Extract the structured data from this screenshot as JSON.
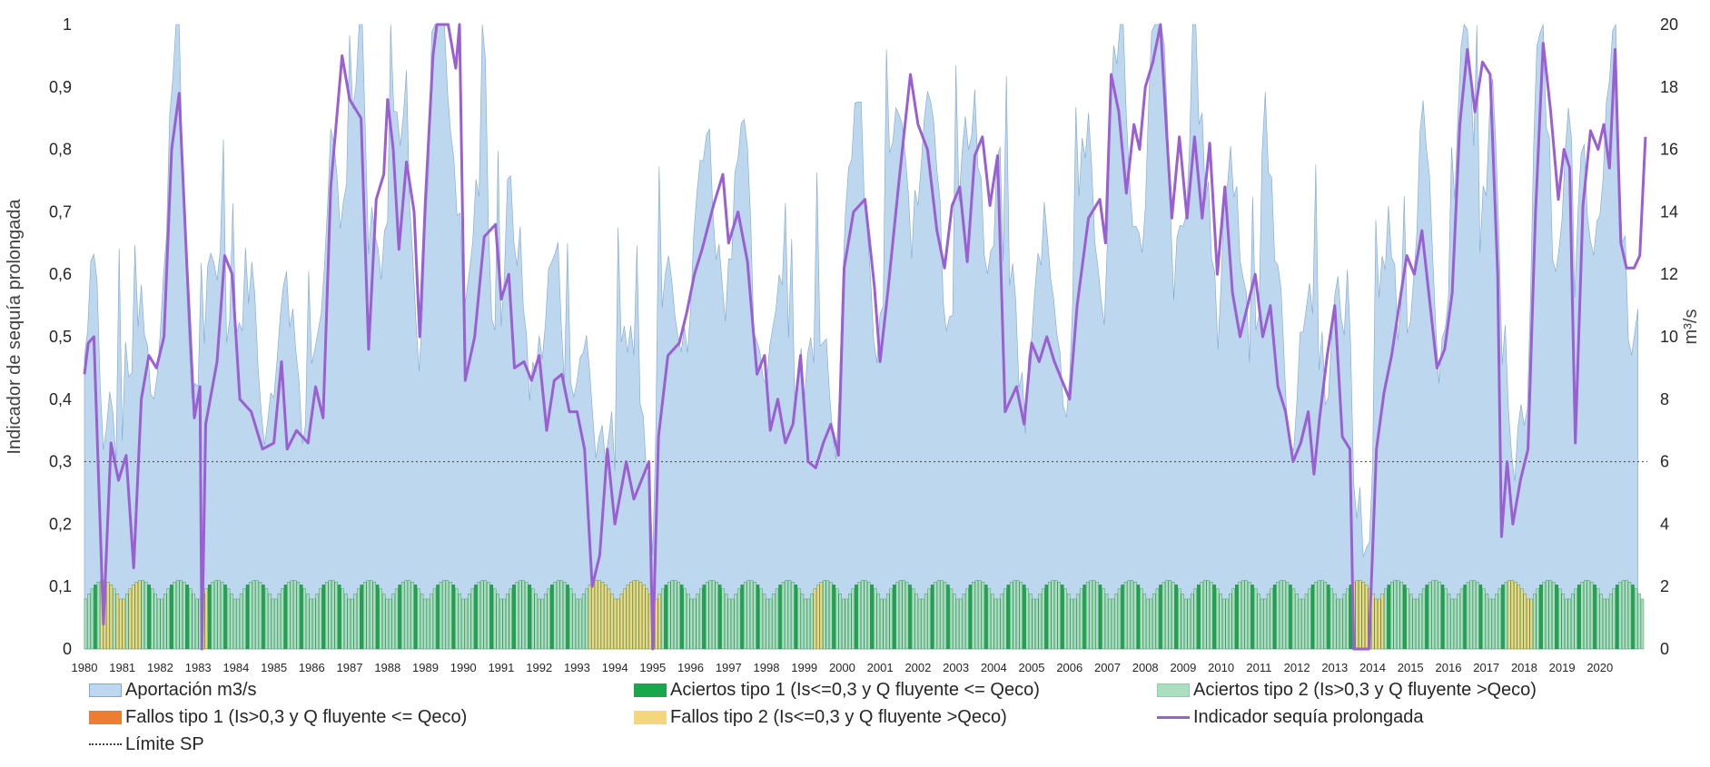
{
  "chart_data": {
    "type": "area+bar+line",
    "y_left_label": "Indicador de sequía prolongada",
    "y_right_label": "m³/s",
    "y_left_ticks": [
      "0",
      "0,1",
      "0,2",
      "0,3",
      "0,4",
      "0,5",
      "0,6",
      "0,7",
      "0,8",
      "0,9",
      "1"
    ],
    "y_right_ticks": [
      "0",
      "2",
      "4",
      "6",
      "8",
      "10",
      "12",
      "14",
      "16",
      "18",
      "20"
    ],
    "ylim_left": [
      0,
      1
    ],
    "ylim_right": [
      0,
      20
    ],
    "x_years": [
      "1980",
      "1981",
      "1982",
      "1983",
      "1984",
      "1985",
      "1986",
      "1987",
      "1988",
      "1989",
      "1990",
      "1991",
      "1992",
      "1993",
      "1994",
      "1995",
      "1996",
      "1997",
      "1998",
      "1999",
      "2000",
      "2001",
      "2002",
      "2003",
      "2004",
      "2005",
      "2006",
      "2007",
      "2008",
      "2009",
      "2010",
      "2011",
      "2012",
      "2013",
      "2014",
      "2015",
      "2016",
      "2017",
      "2018",
      "2019",
      "2020"
    ],
    "threshold": 0.3,
    "colors": {
      "aportacion": "#bdd7ee",
      "aportacion_edge": "#7fa7cf",
      "aciertos1": "#1aa64a",
      "aciertos2": "#a9dfbf",
      "fallos1": "#ed7d31",
      "fallos2": "#f3d77a",
      "indicador": "#9a5fd2",
      "limite": "#404040"
    },
    "indicador_anchors": [
      [
        1980.0,
        0.44
      ],
      [
        1980.1,
        0.49
      ],
      [
        1980.25,
        0.5
      ],
      [
        1980.5,
        0.04
      ],
      [
        1980.7,
        0.33
      ],
      [
        1980.9,
        0.27
      ],
      [
        1981.1,
        0.31
      ],
      [
        1981.3,
        0.13
      ],
      [
        1981.5,
        0.4
      ],
      [
        1981.7,
        0.47
      ],
      [
        1981.9,
        0.45
      ],
      [
        1982.1,
        0.5
      ],
      [
        1982.3,
        0.8
      ],
      [
        1982.5,
        0.89
      ],
      [
        1982.7,
        0.62
      ],
      [
        1982.9,
        0.37
      ],
      [
        1983.05,
        0.42
      ],
      [
        1983.1,
        0.0
      ],
      [
        1983.2,
        0.36
      ],
      [
        1983.5,
        0.46
      ],
      [
        1983.7,
        0.63
      ],
      [
        1983.9,
        0.6
      ],
      [
        1984.1,
        0.4
      ],
      [
        1984.4,
        0.38
      ],
      [
        1984.7,
        0.32
      ],
      [
        1985.0,
        0.33
      ],
      [
        1985.2,
        0.46
      ],
      [
        1985.35,
        0.32
      ],
      [
        1985.6,
        0.35
      ],
      [
        1985.9,
        0.33
      ],
      [
        1986.1,
        0.42
      ],
      [
        1986.3,
        0.37
      ],
      [
        1986.5,
        0.74
      ],
      [
        1986.8,
        0.95
      ],
      [
        1987.0,
        0.88
      ],
      [
        1987.3,
        0.85
      ],
      [
        1987.5,
        0.48
      ],
      [
        1987.7,
        0.72
      ],
      [
        1987.9,
        0.76
      ],
      [
        1988.0,
        0.88
      ],
      [
        1988.15,
        0.8
      ],
      [
        1988.3,
        0.64
      ],
      [
        1988.5,
        0.78
      ],
      [
        1988.7,
        0.7
      ],
      [
        1988.85,
        0.5
      ],
      [
        1989.0,
        0.72
      ],
      [
        1989.2,
        0.95
      ],
      [
        1989.3,
        1.0
      ],
      [
        1989.6,
        1.0
      ],
      [
        1989.8,
        0.93
      ],
      [
        1989.9,
        1.0
      ],
      [
        1990.05,
        0.43
      ],
      [
        1990.3,
        0.5
      ],
      [
        1990.55,
        0.66
      ],
      [
        1990.85,
        0.68
      ],
      [
        1991.0,
        0.56
      ],
      [
        1991.2,
        0.6
      ],
      [
        1991.35,
        0.45
      ],
      [
        1991.6,
        0.46
      ],
      [
        1991.8,
        0.43
      ],
      [
        1992.0,
        0.47
      ],
      [
        1992.2,
        0.35
      ],
      [
        1992.4,
        0.43
      ],
      [
        1992.6,
        0.44
      ],
      [
        1992.8,
        0.38
      ],
      [
        1993.0,
        0.38
      ],
      [
        1993.2,
        0.32
      ],
      [
        1993.4,
        0.1
      ],
      [
        1993.6,
        0.15
      ],
      [
        1993.8,
        0.32
      ],
      [
        1994.0,
        0.2
      ],
      [
        1994.3,
        0.3
      ],
      [
        1994.5,
        0.24
      ],
      [
        1994.7,
        0.27
      ],
      [
        1994.9,
        0.3
      ],
      [
        1995.0,
        0.0
      ],
      [
        1995.15,
        0.34
      ],
      [
        1995.4,
        0.47
      ],
      [
        1995.7,
        0.49
      ],
      [
        1995.9,
        0.54
      ],
      [
        1996.1,
        0.6
      ],
      [
        1996.3,
        0.64
      ],
      [
        1996.6,
        0.71
      ],
      [
        1996.85,
        0.76
      ],
      [
        1997.0,
        0.65
      ],
      [
        1997.25,
        0.7
      ],
      [
        1997.5,
        0.62
      ],
      [
        1997.75,
        0.44
      ],
      [
        1997.95,
        0.47
      ],
      [
        1998.1,
        0.35
      ],
      [
        1998.3,
        0.4
      ],
      [
        1998.5,
        0.33
      ],
      [
        1998.7,
        0.36
      ],
      [
        1998.9,
        0.47
      ],
      [
        1999.1,
        0.3
      ],
      [
        1999.3,
        0.29
      ],
      [
        1999.5,
        0.33
      ],
      [
        1999.7,
        0.36
      ],
      [
        1999.9,
        0.31
      ],
      [
        2000.05,
        0.61
      ],
      [
        2000.3,
        0.7
      ],
      [
        2000.6,
        0.72
      ],
      [
        2000.85,
        0.58
      ],
      [
        2001.0,
        0.46
      ],
      [
        2001.2,
        0.57
      ],
      [
        2001.5,
        0.75
      ],
      [
        2001.8,
        0.92
      ],
      [
        2002.0,
        0.84
      ],
      [
        2002.25,
        0.8
      ],
      [
        2002.5,
        0.67
      ],
      [
        2002.7,
        0.61
      ],
      [
        2002.9,
        0.71
      ],
      [
        2003.1,
        0.74
      ],
      [
        2003.3,
        0.62
      ],
      [
        2003.5,
        0.79
      ],
      [
        2003.7,
        0.82
      ],
      [
        2003.9,
        0.71
      ],
      [
        2004.1,
        0.79
      ],
      [
        2004.3,
        0.38
      ],
      [
        2004.6,
        0.42
      ],
      [
        2004.8,
        0.36
      ],
      [
        2005.0,
        0.49
      ],
      [
        2005.2,
        0.46
      ],
      [
        2005.4,
        0.5
      ],
      [
        2005.6,
        0.46
      ],
      [
        2005.8,
        0.43
      ],
      [
        2006.0,
        0.4
      ],
      [
        2006.2,
        0.55
      ],
      [
        2006.5,
        0.69
      ],
      [
        2006.8,
        0.72
      ],
      [
        2006.95,
        0.65
      ],
      [
        2007.1,
        0.92
      ],
      [
        2007.3,
        0.86
      ],
      [
        2007.5,
        0.73
      ],
      [
        2007.7,
        0.84
      ],
      [
        2007.85,
        0.8
      ],
      [
        2008.0,
        0.9
      ],
      [
        2008.2,
        0.94
      ],
      [
        2008.4,
        1.0
      ],
      [
        2008.55,
        0.84
      ],
      [
        2008.7,
        0.69
      ],
      [
        2008.9,
        0.82
      ],
      [
        2009.1,
        0.69
      ],
      [
        2009.3,
        0.82
      ],
      [
        2009.5,
        0.69
      ],
      [
        2009.7,
        0.81
      ],
      [
        2009.9,
        0.6
      ],
      [
        2010.1,
        0.74
      ],
      [
        2010.3,
        0.57
      ],
      [
        2010.5,
        0.5
      ],
      [
        2010.7,
        0.55
      ],
      [
        2010.9,
        0.6
      ],
      [
        2011.1,
        0.5
      ],
      [
        2011.3,
        0.55
      ],
      [
        2011.5,
        0.42
      ],
      [
        2011.7,
        0.38
      ],
      [
        2011.9,
        0.3
      ],
      [
        2012.1,
        0.33
      ],
      [
        2012.3,
        0.38
      ],
      [
        2012.45,
        0.28
      ],
      [
        2012.6,
        0.37
      ],
      [
        2012.8,
        0.47
      ],
      [
        2013.0,
        0.55
      ],
      [
        2013.2,
        0.34
      ],
      [
        2013.4,
        0.32
      ],
      [
        2013.5,
        0.0
      ],
      [
        2013.9,
        0.0
      ],
      [
        2014.1,
        0.32
      ],
      [
        2014.3,
        0.41
      ],
      [
        2014.5,
        0.47
      ],
      [
        2014.7,
        0.55
      ],
      [
        2014.9,
        0.63
      ],
      [
        2015.1,
        0.6
      ],
      [
        2015.3,
        0.67
      ],
      [
        2015.5,
        0.56
      ],
      [
        2015.7,
        0.45
      ],
      [
        2015.9,
        0.48
      ],
      [
        2016.1,
        0.57
      ],
      [
        2016.3,
        0.84
      ],
      [
        2016.5,
        0.96
      ],
      [
        2016.7,
        0.86
      ],
      [
        2016.9,
        0.94
      ],
      [
        2017.1,
        0.92
      ],
      [
        2017.3,
        0.6
      ],
      [
        2017.4,
        0.18
      ],
      [
        2017.55,
        0.3
      ],
      [
        2017.7,
        0.2
      ],
      [
        2017.9,
        0.27
      ],
      [
        2018.1,
        0.32
      ],
      [
        2018.3,
        0.7
      ],
      [
        2018.5,
        0.97
      ],
      [
        2018.7,
        0.86
      ],
      [
        2018.9,
        0.72
      ],
      [
        2019.05,
        0.8
      ],
      [
        2019.2,
        0.77
      ],
      [
        2019.35,
        0.33
      ],
      [
        2019.55,
        0.71
      ],
      [
        2019.75,
        0.83
      ],
      [
        2019.95,
        0.8
      ],
      [
        2020.1,
        0.84
      ],
      [
        2020.25,
        0.77
      ],
      [
        2020.4,
        0.96
      ],
      [
        2020.55,
        0.65
      ],
      [
        2020.7,
        0.61
      ],
      [
        2020.9,
        0.61
      ],
      [
        2021.05,
        0.63
      ],
      [
        2021.2,
        0.82
      ]
    ]
  },
  "legend": [
    {
      "label": "Aportación m3/s",
      "kind": "box",
      "color": "#bdd7ee",
      "border": "#7fa7cf"
    },
    {
      "label": "Aciertos tipo 1 (Is<=0,3 y Q fluyente <= Qeco)",
      "kind": "box",
      "color": "#1aa64a",
      "border": "#1aa64a"
    },
    {
      "label": "Aciertos tipo 2 (Is>0,3 y Q fluyente >Qeco)",
      "kind": "box",
      "color": "#a9dfbf",
      "border": "#8ccfa6"
    },
    {
      "label": "Fallos tipo 1 (Is>0,3 y Q fluyente <= Qeco)",
      "kind": "box",
      "color": "#ed7d31",
      "border": "#ed7d31"
    },
    {
      "label": "Fallos tipo 2 (Is<=0,3 y Q fluyente >Qeco)",
      "kind": "box",
      "color": "#f3d77a",
      "border": "#f3d77a"
    },
    {
      "label": "Indicador sequía prolongada",
      "kind": "line",
      "color": "#9a5fd2"
    },
    {
      "label": "Límite SP",
      "kind": "dotted",
      "color": "#404040"
    }
  ]
}
